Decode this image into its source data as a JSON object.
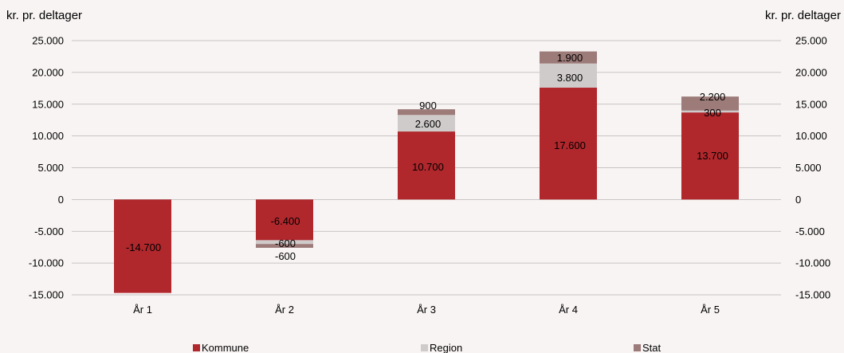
{
  "chart_data": {
    "type": "bar",
    "stacked": true,
    "title": "",
    "ylabel_left": "kr. pr. deltager",
    "ylabel_right": "kr. pr. deltager",
    "categories": [
      "År 1",
      "År 2",
      "År 3",
      "År 4",
      "År 5"
    ],
    "ylim": [
      -15000,
      25000
    ],
    "yticks": [
      25000,
      20000,
      15000,
      10000,
      5000,
      0,
      -5000,
      -10000,
      -15000
    ],
    "ytick_labels": [
      "25.000",
      "20.000",
      "15.000",
      "10.000",
      "5.000",
      "0",
      "-5.000",
      "-10.000",
      "-15.000"
    ],
    "grid": true,
    "legend_position": "bottom",
    "series": [
      {
        "name": "Kommune",
        "color": "#b0272c",
        "values": [
          -14700,
          -6400,
          10700,
          17600,
          13700
        ],
        "labels": [
          "-14.700",
          "-6.400",
          "10.700",
          "17.600",
          "13.700"
        ]
      },
      {
        "name": "Region",
        "color": "#cfcbca",
        "values": [
          0,
          -600,
          2600,
          3800,
          300
        ],
        "labels": [
          "",
          "-600",
          "2.600",
          "3.800",
          "300"
        ]
      },
      {
        "name": "Stat",
        "color": "#9c7b79",
        "values": [
          0,
          -600,
          900,
          1900,
          2200
        ],
        "labels": [
          "",
          "-600",
          "900",
          "1.900",
          "2.200"
        ]
      }
    ]
  }
}
